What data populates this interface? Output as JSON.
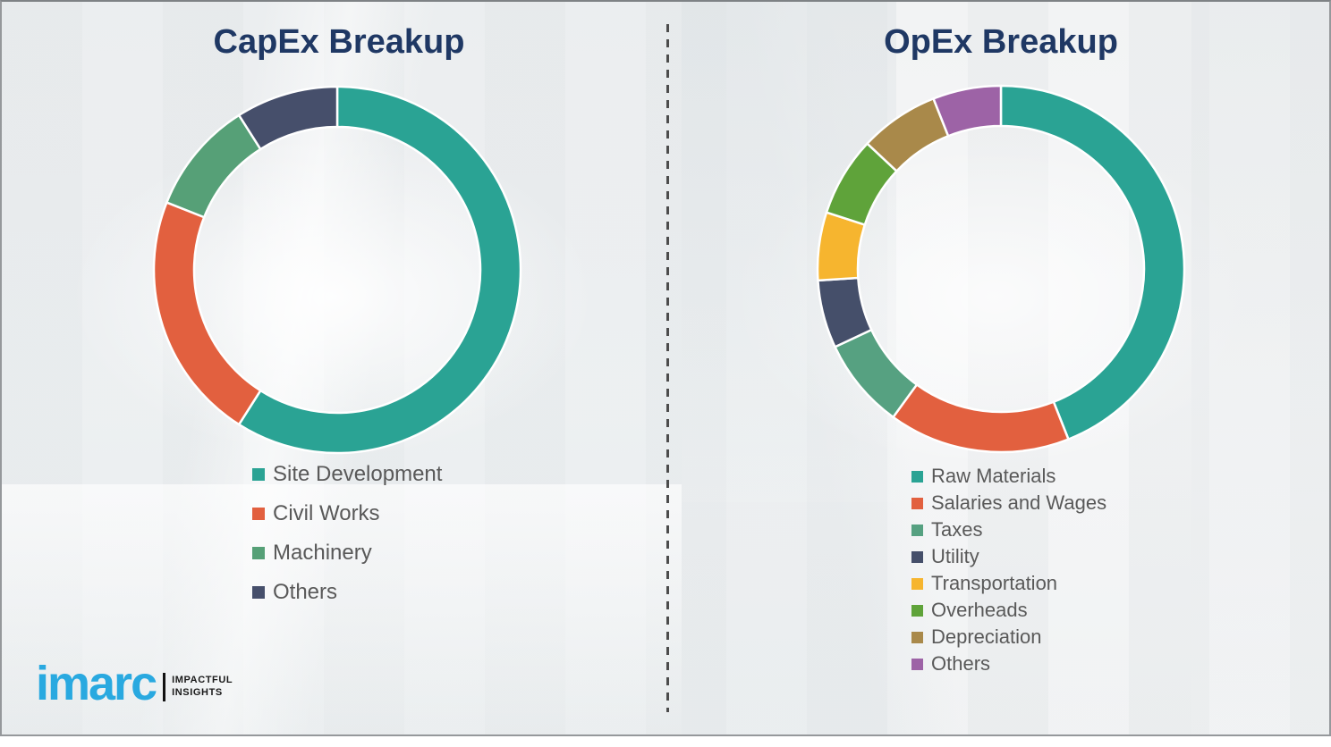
{
  "chart_data": [
    {
      "id": "capex",
      "type": "donut",
      "title": "CapEx Breakup",
      "start_angle_deg": 0,
      "direction": "clockwise",
      "legend_position": "below-left",
      "segments": [
        {
          "label": "Site Development",
          "value": 59,
          "color": "#2aa394"
        },
        {
          "label": "Civil Works",
          "value": 22,
          "color": "#e2603f"
        },
        {
          "label": "Machinery",
          "value": 10,
          "color": "#56a077"
        },
        {
          "label": "Others",
          "value": 9,
          "color": "#464f6b"
        }
      ]
    },
    {
      "id": "opex",
      "type": "donut",
      "title": "OpEx Breakup",
      "start_angle_deg": 0,
      "direction": "clockwise",
      "legend_position": "below-left",
      "segments": [
        {
          "label": "Raw Materials",
          "value": 44,
          "color": "#2aa394"
        },
        {
          "label": "Salaries and Wages",
          "value": 16,
          "color": "#e2603f"
        },
        {
          "label": "Taxes",
          "value": 8,
          "color": "#56a181"
        },
        {
          "label": "Utility",
          "value": 6,
          "color": "#454f6a"
        },
        {
          "label": "Transportation",
          "value": 6,
          "color": "#f6b52f"
        },
        {
          "label": "Overheads",
          "value": 7,
          "color": "#5fa33a"
        },
        {
          "label": "Depreciation",
          "value": 7,
          "color": "#a9894a"
        },
        {
          "label": "Others",
          "value": 6,
          "color": "#9d63a6"
        }
      ]
    }
  ],
  "branding": {
    "logo_text": "imarc",
    "tagline_line1": "IMPACTFUL",
    "tagline_line2": "INSIGHTS",
    "logo_color": "#29a9e0"
  },
  "style": {
    "title_color": "#1f3864",
    "legend_text_color": "#595959",
    "divider_style": "vertical-dashed"
  }
}
